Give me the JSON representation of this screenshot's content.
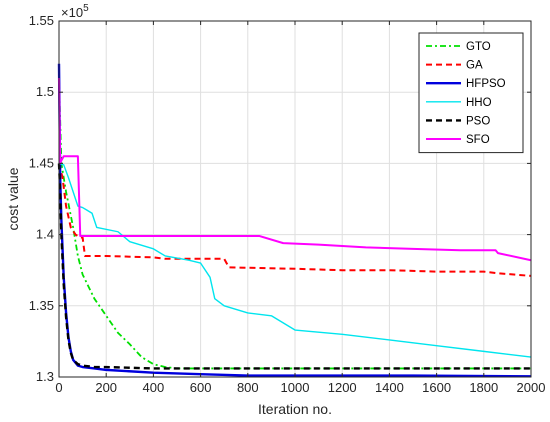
{
  "chart_data": {
    "type": "line",
    "xlabel": "Iteration no.",
    "ylabel": "cost value",
    "exponent_label": "×10",
    "exponent_power": "5",
    "xlim": [
      0,
      2000
    ],
    "ylim": [
      1.3,
      1.55
    ],
    "x_ticks": [
      0,
      200,
      400,
      600,
      800,
      1000,
      1200,
      1400,
      1600,
      1800,
      2000
    ],
    "y_ticks": [
      1.3,
      1.35,
      1.4,
      1.45,
      1.5,
      1.55
    ],
    "x_tick_labels": [
      "0",
      "200",
      "400",
      "600",
      "800",
      "1000",
      "1200",
      "1400",
      "1600",
      "1800",
      "2000"
    ],
    "y_tick_labels": [
      "1.3",
      "1.35",
      "1.4",
      "1.45",
      "1.5",
      "1.55"
    ],
    "grid": true,
    "legend_position": "top-right",
    "series": [
      {
        "name": "GTO",
        "color": "#00e000",
        "dash": "dashdot",
        "x": [
          0,
          10,
          30,
          60,
          80,
          100,
          150,
          200,
          250,
          300,
          350,
          400,
          450,
          500,
          2000
        ],
        "y": [
          1.51,
          1.45,
          1.43,
          1.405,
          1.385,
          1.372,
          1.355,
          1.343,
          1.331,
          1.323,
          1.314,
          1.309,
          1.307,
          1.306,
          1.306
        ]
      },
      {
        "name": "GA",
        "color": "#ff0000",
        "dash": "dashed",
        "x": [
          0,
          15,
          30,
          50,
          70,
          90,
          100,
          110,
          200,
          400,
          450,
          700,
          720,
          1000,
          1200,
          1400,
          1600,
          1800,
          1850,
          2000
        ],
        "y": [
          1.45,
          1.44,
          1.42,
          1.405,
          1.4,
          1.398,
          1.398,
          1.385,
          1.385,
          1.384,
          1.383,
          1.383,
          1.377,
          1.376,
          1.375,
          1.375,
          1.374,
          1.374,
          1.373,
          1.371
        ]
      },
      {
        "name": "HFPSO",
        "color": "#0000dd",
        "dash": "solid",
        "x": [
          0,
          5,
          10,
          20,
          30,
          40,
          50,
          60,
          80,
          100,
          150,
          200,
          400,
          600,
          800,
          1000,
          1500,
          2000
        ],
        "y": [
          1.52,
          1.44,
          1.41,
          1.37,
          1.345,
          1.328,
          1.318,
          1.312,
          1.308,
          1.307,
          1.306,
          1.305,
          1.303,
          1.302,
          1.301,
          1.301,
          1.301,
          1.3005
        ]
      },
      {
        "name": "HHO",
        "color": "#00e5ee",
        "dash": "solid",
        "x": [
          0,
          20,
          40,
          60,
          80,
          100,
          120,
          140,
          160,
          250,
          300,
          400,
          450,
          550,
          600,
          640,
          660,
          700,
          800,
          900,
          1000,
          1200,
          1400,
          1600,
          1800,
          2000
        ],
        "y": [
          1.45,
          1.449,
          1.44,
          1.43,
          1.42,
          1.419,
          1.417,
          1.415,
          1.405,
          1.402,
          1.395,
          1.39,
          1.385,
          1.382,
          1.38,
          1.37,
          1.355,
          1.35,
          1.345,
          1.343,
          1.333,
          1.33,
          1.326,
          1.322,
          1.318,
          1.314
        ]
      },
      {
        "name": "PSO",
        "color": "#000000",
        "dash": "dashed",
        "x": [
          0,
          5,
          10,
          20,
          30,
          40,
          50,
          60,
          80,
          100,
          150,
          200,
          400,
          600,
          2000
        ],
        "y": [
          1.45,
          1.43,
          1.4,
          1.365,
          1.342,
          1.326,
          1.317,
          1.312,
          1.309,
          1.308,
          1.307,
          1.307,
          1.306,
          1.306,
          1.306
        ]
      },
      {
        "name": "SFO",
        "color": "#ff00ff",
        "dash": "solid",
        "x": [
          0,
          5,
          10,
          20,
          30,
          80,
          90,
          850,
          950,
          1100,
          1300,
          1500,
          1700,
          1850,
          1860,
          2000
        ],
        "y": [
          1.51,
          1.45,
          1.452,
          1.455,
          1.455,
          1.455,
          1.399,
          1.399,
          1.394,
          1.393,
          1.391,
          1.39,
          1.389,
          1.389,
          1.387,
          1.382
        ]
      }
    ]
  }
}
